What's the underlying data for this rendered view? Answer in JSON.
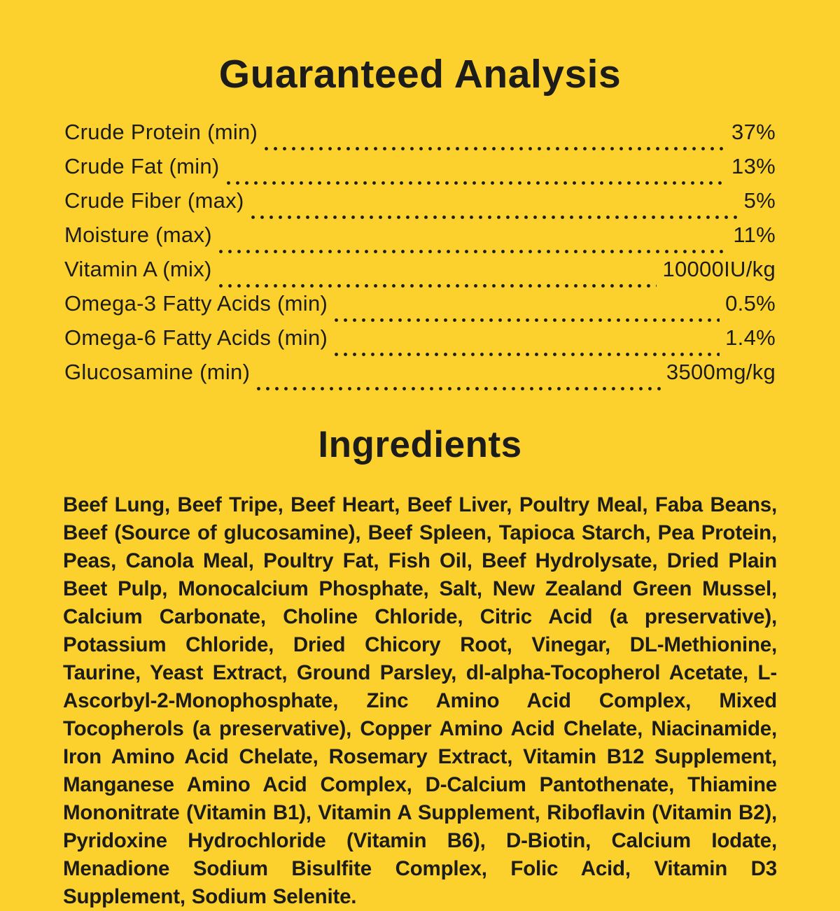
{
  "page": {
    "background_color": "#FDD12D",
    "text_color": "#1C1C1A"
  },
  "guaranteed_analysis": {
    "title": "Guaranteed Analysis",
    "rows": [
      {
        "label": "Crude Protein (min)",
        "value": "37%"
      },
      {
        "label": "Crude Fat (min)",
        "value": "13%"
      },
      {
        "label": "Crude Fiber (max)",
        "value": "5%"
      },
      {
        "label": "Moisture (max)",
        "value": "11%"
      },
      {
        "label": "Vitamin A (mix)",
        "value": "10000IU/kg"
      },
      {
        "label": "Omega-3 Fatty Acids (min)",
        "value": "0.5%"
      },
      {
        "label": "Omega-6 Fatty Acids (min)",
        "value": "1.4%"
      },
      {
        "label": "Glucosamine (min)",
        "value": "3500mg/kg"
      }
    ]
  },
  "ingredients": {
    "title": "Ingredients",
    "text": "Beef Lung, Beef Tripe, Beef Heart, Beef Liver, Poultry Meal, Faba Beans, Beef (Source of glucosamine), Beef Spleen, Tapioca Starch, Pea Protein, Peas, Canola Meal, Poultry Fat, Fish Oil, Beef Hydrolysate, Dried Plain Beet Pulp, Monocalcium Phosphate, Salt, New Zealand Green Mussel, Calcium Carbonate, Choline Chloride, Citric Acid (a preservative), Potassium Chloride, Dried Chicory Root, Vinegar, DL-Methionine, Taurine, Yeast Extract, Ground Parsley, dl-alpha-Tocopherol Acetate, L-Ascorbyl-2-Monophosphate, Zinc Amino Acid Complex, Mixed Tocopherols (a preservative), Copper Amino Acid Chelate, Niacinamide, Iron Amino Acid Chelate, Rosemary Extract, Vitamin B12 Supplement, Manganese Amino Acid Complex, D-Calcium Pantothenate, Thiamine Mononitrate (Vitamin B1), Vitamin A Supplement, Riboflavin (Vitamin B2), Pyridoxine Hydrochloride (Vitamin B6), D-Biotin, Calcium Iodate, Menadione Sodium Bisulfite Complex, Folic Acid, Vitamin D3 Supplement, Sodium Selenite."
  }
}
